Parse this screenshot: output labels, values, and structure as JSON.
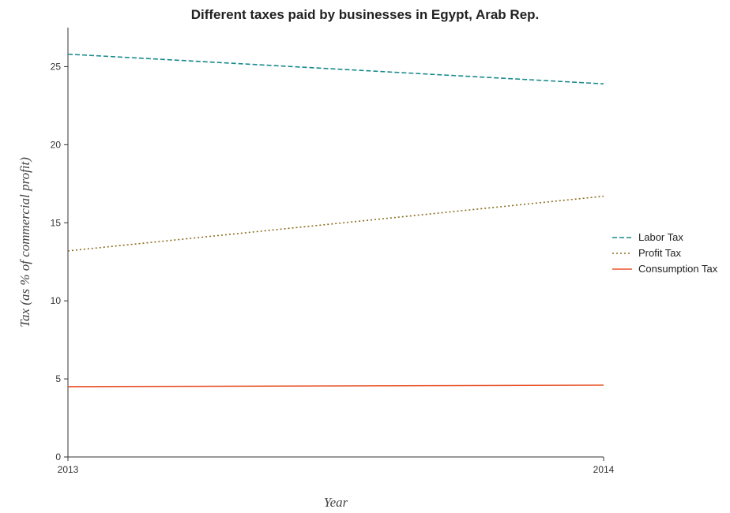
{
  "chart_data": {
    "type": "line",
    "title": "Different taxes paid by businesses in Egypt, Arab Rep.",
    "xlabel": "Year",
    "ylabel": "Tax (as % of commercial profit)",
    "x": [
      "2013",
      "2014"
    ],
    "ylim": [
      0,
      27.5
    ],
    "yticks": [
      0,
      5,
      10,
      15,
      20,
      25
    ],
    "grid": false,
    "legend_position": "right",
    "series": [
      {
        "name": "Labor Tax",
        "values": [
          25.8,
          23.9
        ],
        "color": "#1a8a8c",
        "dash": "6,3"
      },
      {
        "name": "Profit Tax",
        "values": [
          13.2,
          16.7
        ],
        "color": "#8b6d1e",
        "dash": "2,3"
      },
      {
        "name": "Consumption Tax",
        "values": [
          4.5,
          4.6
        ],
        "color": "#e8542a",
        "dash": ""
      }
    ]
  }
}
